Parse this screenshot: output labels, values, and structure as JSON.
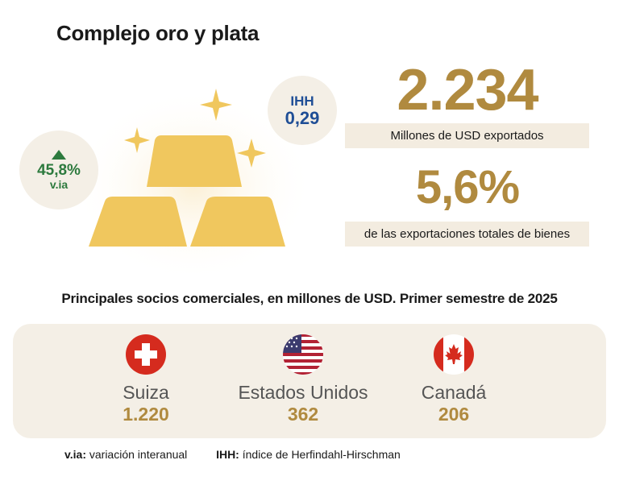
{
  "page": {
    "title": "Complejo oro y plata",
    "subtitle": "Principales socios comerciales, en millones de USD. Primer semestre de 2025"
  },
  "variation": {
    "value": "45,8%",
    "label": "v.ia",
    "direction": "up",
    "color": "#2d7a3e"
  },
  "ihh": {
    "label": "IHH",
    "value": "0,29",
    "color": "#1f4e96"
  },
  "exports": {
    "value": "2.234",
    "label": "Millones de USD exportados"
  },
  "share": {
    "value": "5,6%",
    "label": "de las exportaciones totales de bienes"
  },
  "partners": [
    {
      "name": "Suiza",
      "value": "1.220",
      "flag": "swiss-flag-icon"
    },
    {
      "name": "Estados Unidos",
      "value": "362",
      "flag": "usa-flag-icon"
    },
    {
      "name": "Canadá",
      "value": "206",
      "flag": "canada-flag-icon"
    }
  ],
  "footer": {
    "via_key": "v.ia:",
    "via_text": "variación interanual",
    "ihh_key": "IHH:",
    "ihh_text": "índice de Herfindahl-Hirschman"
  },
  "colors": {
    "gold": "#b08a3f",
    "bar": "#f0c75e",
    "panel": "#f4efe6",
    "band": "#f3ece0"
  }
}
